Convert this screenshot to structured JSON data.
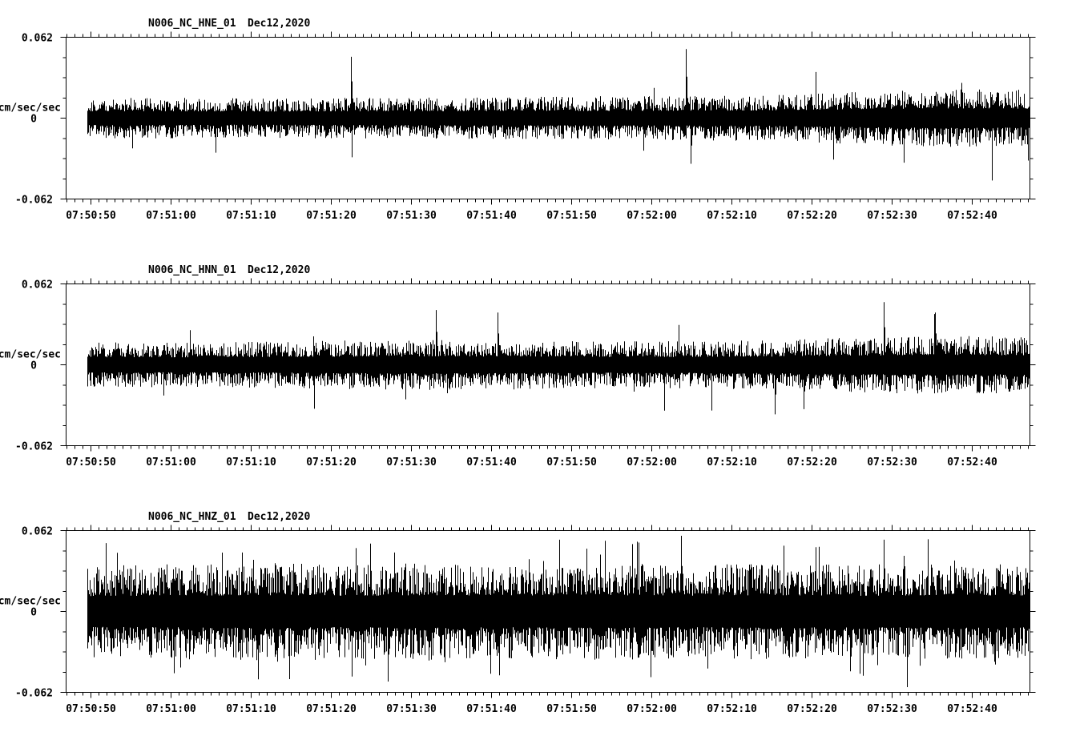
{
  "background_color": "#ffffff",
  "trace_color": "#000000",
  "chart_data": [
    {
      "type": "line",
      "title": "N006_NC_HNE_01",
      "date_label": "Dec12,2020",
      "ylabel": "cm/sec/sec",
      "zero_label": "0",
      "ymax_label": "0.062",
      "ymin_label": "-0.062",
      "ylim": [
        -0.062,
        0.062
      ],
      "x_tick_labels": [
        "07:50:50",
        "07:51:00",
        "07:51:10",
        "07:51:20",
        "07:51:30",
        "07:51:40",
        "07:51:50",
        "07:52:00",
        "07:52:10",
        "07:52:20",
        "07:52:30",
        "07:52:40"
      ],
      "x_minor_ticks_per_major": 10,
      "grid": false,
      "legend": false,
      "trace": {
        "seed": 101,
        "base_amp": 0.0105,
        "min_frac": 0.5,
        "spike_prob": 0.006,
        "spike_scale": 2.2,
        "envelope": [
          1,
          1,
          0.95,
          1,
          1,
          1.05,
          1.05,
          1.08,
          1.12,
          1.3,
          1.42,
          1.38
        ],
        "events": [
          {
            "t": 0.28,
            "amp": 0.047
          },
          {
            "t": 0.635,
            "amp": 0.053
          },
          {
            "t": 0.64,
            "amp": -0.035
          }
        ]
      }
    },
    {
      "type": "line",
      "title": "N006_NC_HNN_01",
      "date_label": "Dec12,2020",
      "ylabel": "cm/sec/sec",
      "zero_label": "0",
      "ymax_label": "0.062",
      "ymin_label": "-0.062",
      "ylim": [
        -0.062,
        0.062
      ],
      "x_tick_labels": [
        "07:50:50",
        "07:51:00",
        "07:51:10",
        "07:51:20",
        "07:51:30",
        "07:51:40",
        "07:51:50",
        "07:52:00",
        "07:52:10",
        "07:52:20",
        "07:52:30",
        "07:52:40"
      ],
      "x_minor_ticks_per_major": 10,
      "grid": false,
      "legend": false,
      "trace": {
        "seed": 202,
        "base_amp": 0.0115,
        "min_frac": 0.5,
        "spike_prob": 0.006,
        "spike_scale": 2.0,
        "envelope": [
          1,
          1,
          1.02,
          1.08,
          1.12,
          1.1,
          1.05,
          1.05,
          1.1,
          1.22,
          1.32,
          1.25
        ],
        "events": [
          {
            "t": 0.37,
            "amp": 0.042
          },
          {
            "t": 0.435,
            "amp": 0.04
          },
          {
            "t": 0.73,
            "amp": -0.038
          },
          {
            "t": 0.76,
            "amp": -0.034
          },
          {
            "t": 0.845,
            "amp": 0.048
          },
          {
            "t": 0.9,
            "amp": 0.04
          }
        ]
      }
    },
    {
      "type": "line",
      "title": "N006_NC_HNZ_01",
      "date_label": "Dec12,2020",
      "ylabel": "cm/sec/sec",
      "zero_label": "0",
      "ymax_label": "0.062",
      "ymin_label": "-0.062",
      "ylim": [
        -0.062,
        0.062
      ],
      "x_tick_labels": [
        "07:50:50",
        "07:51:00",
        "07:51:10",
        "07:51:20",
        "07:51:30",
        "07:51:40",
        "07:51:50",
        "07:52:00",
        "07:52:10",
        "07:52:20",
        "07:52:30",
        "07:52:40"
      ],
      "x_minor_ticks_per_major": 10,
      "grid": false,
      "legend": false,
      "trace": {
        "seed": 303,
        "base_amp": 0.0235,
        "min_frac": 0.5,
        "spike_prob": 0.05,
        "spike_scale": 1.5,
        "envelope": [
          1,
          1.03,
          1.06,
          1.02,
          1.06,
          1.03,
          1.06,
          1.02,
          1.05,
          1.02,
          1.06,
          1.03
        ],
        "events": [
          {
            "t": 0.3,
            "amp": 0.052
          },
          {
            "t": 0.63,
            "amp": 0.058
          },
          {
            "t": 0.845,
            "amp": 0.055
          },
          {
            "t": 0.87,
            "amp": -0.058
          }
        ]
      }
    }
  ]
}
